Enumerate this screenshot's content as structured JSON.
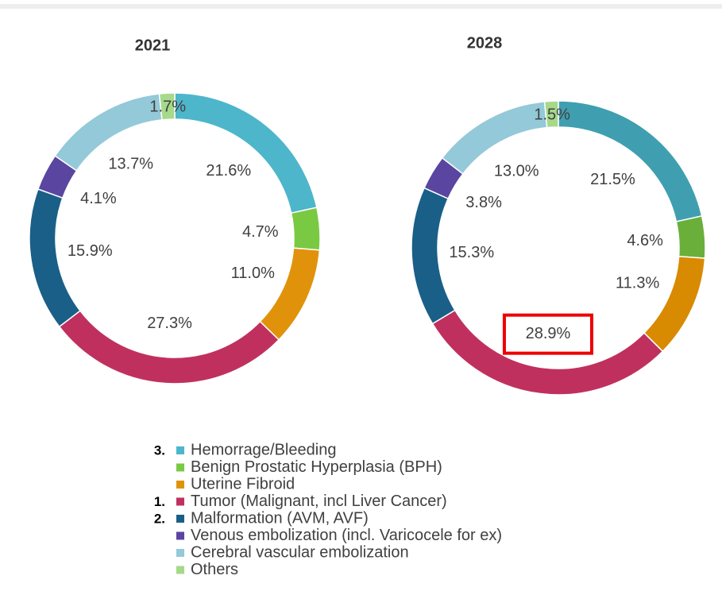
{
  "chart_data": [
    {
      "type": "pie",
      "title": "2021",
      "categories": [
        "Hemorrage/Bleeding",
        "Benign Prostatic Hyperplasia (BPH)",
        "Uterine Fibroid",
        "Tumor (Malignant, incl Liver Cancer)",
        "Malformation (AVM, AVF)",
        "Venous embolization (incl. Varicocele for ex)",
        "Cerebral vascular embolization",
        "Others"
      ],
      "values": [
        21.6,
        4.7,
        11.0,
        27.3,
        15.9,
        4.1,
        13.7,
        1.7
      ],
      "value_labels": [
        "21.6%",
        "4.7%",
        "11.0%",
        "27.3%",
        "15.9%",
        "4.1%",
        "13.7%",
        "1.7%"
      ],
      "colors": [
        "#4db6cb",
        "#7ac943",
        "#e0930a",
        "#c0305e",
        "#1a5f87",
        "#5a45a0",
        "#93c9d8",
        "#a6d98a"
      ]
    },
    {
      "type": "pie",
      "title": "2028",
      "categories": [
        "Hemorrage/Bleeding",
        "Benign Prostatic Hyperplasia (BPH)",
        "Uterine Fibroid",
        "Tumor (Malignant, incl Liver Cancer)",
        "Malformation (AVM, AVF)",
        "Venous embolization (incl. Varicocele for ex)",
        "Cerebral vascular embolization",
        "Others"
      ],
      "values": [
        21.5,
        4.6,
        11.3,
        28.9,
        15.3,
        3.8,
        13.0,
        1.5
      ],
      "value_labels": [
        "21.5%",
        "4.6%",
        "11.3%",
        "28.9%",
        "15.3%",
        "3.8%",
        "13.0%",
        "1.5%"
      ],
      "colors": [
        "#3f9fb0",
        "#6aaf3a",
        "#d88a00",
        "#c0305e",
        "#1a5f87",
        "#5a45a0",
        "#93c9d8",
        "#a6d98a"
      ],
      "highlight": 3
    }
  ],
  "legend_ranks": [
    "3.",
    null,
    null,
    "1.",
    "2.",
    null,
    null,
    null
  ]
}
